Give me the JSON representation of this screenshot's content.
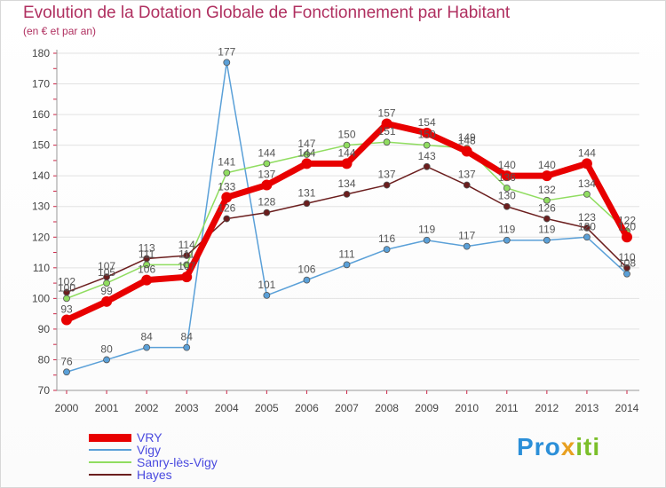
{
  "chart_data": {
    "type": "line",
    "title": "Evolution de la Dotation Globale de Fonctionnement par Habitant",
    "subtitle": "(en € et par an)",
    "xlabel": "",
    "ylabel": "",
    "ylim": [
      70,
      180
    ],
    "yticks": [
      "70",
      "80",
      "90",
      "100",
      "110",
      "120",
      "130",
      "140",
      "150",
      "160",
      "170",
      "180"
    ],
    "categories": [
      "2000",
      "2001",
      "2002",
      "2003",
      "2004",
      "2005",
      "2006",
      "2007",
      "2008",
      "2009",
      "2010",
      "2011",
      "2012",
      "2013",
      "2014"
    ],
    "grid": true,
    "legend_position": "bottom-left",
    "series": [
      {
        "name": "VRY",
        "color": "#e80000",
        "values": [
          93,
          99,
          106,
          107,
          133,
          137,
          144,
          144,
          157,
          154,
          148,
          140,
          140,
          144,
          120
        ]
      },
      {
        "name": "Vigy",
        "color": "#5aa0d8",
        "values": [
          76,
          80,
          84,
          84,
          177,
          101,
          106,
          111,
          116,
          119,
          117,
          119,
          119,
          120,
          108
        ]
      },
      {
        "name": "Sanry-lès-Vigy",
        "color": "#90dd60",
        "values": [
          100,
          105,
          111,
          111,
          141,
          144,
          147,
          150,
          151,
          150,
          149,
          136,
          132,
          134,
          122
        ]
      },
      {
        "name": "Hayes",
        "color": "#6b1e1e",
        "values": [
          102,
          107,
          113,
          114,
          126,
          128,
          131,
          134,
          137,
          143,
          137,
          130,
          126,
          123,
          110
        ]
      }
    ]
  },
  "logo": {
    "part1": "Pro",
    "part2": "x",
    "part3": "iti"
  }
}
